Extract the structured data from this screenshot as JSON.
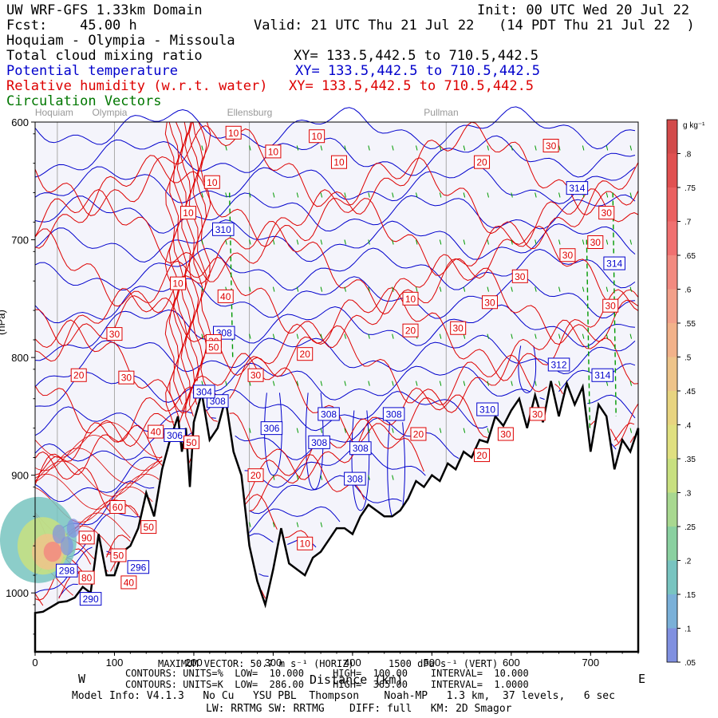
{
  "header": {
    "line1_left": "UW WRF-GFS 1.33km Domain",
    "line1_right": "Init: 00 UTC Wed 20 Jul 22",
    "line2_left": "Fcst:    45.00 h",
    "line2_right": "Valid: 21 UTC Thu 21 Jul 22   (14 PDT Thu 21 Jul 22  )",
    "route": "Hoquiam - Olympia - Missoula",
    "field1": "Total cloud mixing ratio",
    "field1_xy": "XY= 133.5,442.5 to 710.5,442.5",
    "field2": "Potential temperature",
    "field2_xy": "XY= 133.5,442.5 to 710.5,442.5",
    "field3": "Relative humidity (w.r.t. water)",
    "field3_xy": "XY= 133.5,442.5 to 710.5,442.5",
    "field4": "Circulation Vectors"
  },
  "colors": {
    "rh": "#dd0000",
    "theta": "#0000cc",
    "vectors": "#009900",
    "terrain": "#000000",
    "background": "#f4f4fb"
  },
  "chart_data": {
    "type": "contour-cross-section",
    "xlabel": "Distance (km)",
    "ylabel": "Pressure (hPa)",
    "xlim": [
      0,
      760
    ],
    "ylim": [
      1050,
      600
    ],
    "x_ticks": [
      0,
      100,
      200,
      300,
      400,
      500,
      600,
      700
    ],
    "y_ticks": [
      600,
      700,
      800,
      900,
      1000
    ],
    "y_tick_labels": [
      "600",
      "700",
      "800",
      "900",
      "1000"
    ],
    "y_axis_visible_label": "(hPa)",
    "direction_left": "W",
    "direction_right": "E",
    "locations": [
      {
        "name": "Hoquiam",
        "x": 28
      },
      {
        "name": "Olympia",
        "x": 100
      },
      {
        "name": "Ellensburg",
        "x": 270
      },
      {
        "name": "Pullman",
        "x": 518
      }
    ],
    "terrain_surface_hPa": [
      [
        0,
        1017
      ],
      [
        10,
        1016
      ],
      [
        20,
        1012
      ],
      [
        30,
        1008
      ],
      [
        40,
        1007
      ],
      [
        50,
        1004
      ],
      [
        60,
        995
      ],
      [
        70,
        1000
      ],
      [
        80,
        950
      ],
      [
        90,
        985
      ],
      [
        100,
        985
      ],
      [
        110,
        965
      ],
      [
        120,
        960
      ],
      [
        130,
        945
      ],
      [
        140,
        915
      ],
      [
        150,
        935
      ],
      [
        160,
        895
      ],
      [
        170,
        870
      ],
      [
        180,
        850
      ],
      [
        185,
        880
      ],
      [
        190,
        860
      ],
      [
        195,
        910
      ],
      [
        200,
        855
      ],
      [
        210,
        830
      ],
      [
        220,
        870
      ],
      [
        230,
        860
      ],
      [
        240,
        835
      ],
      [
        250,
        880
      ],
      [
        260,
        900
      ],
      [
        270,
        960
      ],
      [
        280,
        990
      ],
      [
        290,
        1010
      ],
      [
        300,
        980
      ],
      [
        310,
        945
      ],
      [
        320,
        975
      ],
      [
        330,
        980
      ],
      [
        340,
        985
      ],
      [
        350,
        970
      ],
      [
        360,
        965
      ],
      [
        370,
        955
      ],
      [
        380,
        945
      ],
      [
        390,
        945
      ],
      [
        400,
        950
      ],
      [
        410,
        935
      ],
      [
        420,
        925
      ],
      [
        430,
        930
      ],
      [
        440,
        935
      ],
      [
        450,
        935
      ],
      [
        460,
        930
      ],
      [
        470,
        920
      ],
      [
        480,
        905
      ],
      [
        490,
        910
      ],
      [
        500,
        900
      ],
      [
        510,
        905
      ],
      [
        520,
        890
      ],
      [
        530,
        895
      ],
      [
        540,
        880
      ],
      [
        550,
        885
      ],
      [
        560,
        870
      ],
      [
        570,
        872
      ],
      [
        580,
        850
      ],
      [
        590,
        858
      ],
      [
        600,
        845
      ],
      [
        610,
        835
      ],
      [
        620,
        860
      ],
      [
        630,
        832
      ],
      [
        640,
        855
      ],
      [
        650,
        820
      ],
      [
        660,
        850
      ],
      [
        670,
        822
      ],
      [
        680,
        840
      ],
      [
        690,
        825
      ],
      [
        700,
        880
      ],
      [
        710,
        840
      ],
      [
        720,
        850
      ],
      [
        730,
        895
      ],
      [
        740,
        870
      ],
      [
        750,
        880
      ],
      [
        760,
        860
      ]
    ],
    "rh_contour_labels": [
      {
        "text": "10",
        "x": 250,
        "p": 609
      },
      {
        "text": "10",
        "x": 300,
        "p": 625
      },
      {
        "text": "10",
        "x": 355,
        "p": 612
      },
      {
        "text": "10",
        "x": 383,
        "p": 634
      },
      {
        "text": "10",
        "x": 223,
        "p": 651
      },
      {
        "text": "10",
        "x": 193,
        "p": 677
      },
      {
        "text": "10",
        "x": 180,
        "p": 737
      },
      {
        "text": "10",
        "x": 473,
        "p": 750
      },
      {
        "text": "10",
        "x": 340,
        "p": 958
      },
      {
        "text": "20",
        "x": 563,
        "p": 634
      },
      {
        "text": "20",
        "x": 473,
        "p": 777
      },
      {
        "text": "20",
        "x": 340,
        "p": 797
      },
      {
        "text": "20",
        "x": 55,
        "p": 815
      },
      {
        "text": "20",
        "x": 278,
        "p": 900
      },
      {
        "text": "20",
        "x": 483,
        "p": 865
      },
      {
        "text": "20",
        "x": 563,
        "p": 883
      },
      {
        "text": "30",
        "x": 650,
        "p": 620
      },
      {
        "text": "30",
        "x": 720,
        "p": 677
      },
      {
        "text": "30",
        "x": 706,
        "p": 702
      },
      {
        "text": "30",
        "x": 671,
        "p": 713
      },
      {
        "text": "30",
        "x": 611,
        "p": 731
      },
      {
        "text": "30",
        "x": 573,
        "p": 753
      },
      {
        "text": "30",
        "x": 533,
        "p": 775
      },
      {
        "text": "30",
        "x": 100,
        "p": 780
      },
      {
        "text": "30",
        "x": 115,
        "p": 817
      },
      {
        "text": "30",
        "x": 278,
        "p": 815
      },
      {
        "text": "30",
        "x": 593,
        "p": 865
      },
      {
        "text": "30",
        "x": 633,
        "p": 848
      },
      {
        "text": "30",
        "x": 725,
        "p": 756
      },
      {
        "text": "30",
        "x": 225,
        "p": 786
      },
      {
        "text": "40",
        "x": 240,
        "p": 748
      },
      {
        "text": "40",
        "x": 152,
        "p": 863
      },
      {
        "text": "40",
        "x": 118,
        "p": 991
      },
      {
        "text": "50",
        "x": 225,
        "p": 791
      },
      {
        "text": "50",
        "x": 197,
        "p": 872
      },
      {
        "text": "50",
        "x": 143,
        "p": 944
      },
      {
        "text": "50",
        "x": 105,
        "p": 968
      },
      {
        "text": "60",
        "x": 104,
        "p": 927
      },
      {
        "text": "80",
        "x": 65,
        "p": 987
      },
      {
        "text": "90",
        "x": 65,
        "p": 953
      }
    ],
    "theta_contour_labels": [
      {
        "text": "310",
        "x": 237,
        "p": 691
      },
      {
        "text": "308",
        "x": 238,
        "p": 779
      },
      {
        "text": "308",
        "x": 230,
        "p": 837
      },
      {
        "text": "304",
        "x": 213,
        "p": 829
      },
      {
        "text": "306",
        "x": 176,
        "p": 866
      },
      {
        "text": "306",
        "x": 298,
        "p": 860
      },
      {
        "text": "308",
        "x": 370,
        "p": 848
      },
      {
        "text": "308",
        "x": 358,
        "p": 872
      },
      {
        "text": "308",
        "x": 410,
        "p": 877
      },
      {
        "text": "308",
        "x": 452,
        "p": 848
      },
      {
        "text": "308",
        "x": 403,
        "p": 903
      },
      {
        "text": "310",
        "x": 570,
        "p": 844
      },
      {
        "text": "312",
        "x": 660,
        "p": 806
      },
      {
        "text": "314",
        "x": 683,
        "p": 656
      },
      {
        "text": "314",
        "x": 730,
        "p": 720
      },
      {
        "text": "314",
        "x": 715,
        "p": 815
      },
      {
        "text": "296",
        "x": 130,
        "p": 978
      },
      {
        "text": "298",
        "x": 40,
        "p": 981
      },
      {
        "text": "290",
        "x": 70,
        "p": 1005
      }
    ],
    "cloud_colorbar": {
      "units": "g kg⁻¹",
      "ticks": [
        ".8",
        ".75",
        ".7",
        ".65",
        ".6",
        ".55",
        ".5",
        ".45",
        ".4",
        ".35",
        ".3",
        ".25",
        ".2",
        ".15",
        ".1",
        ".05"
      ],
      "colors": [
        "#d24a4a",
        "#e05050",
        "#ea6060",
        "#f07070",
        "#f28a80",
        "#f3a08a",
        "#f2b28a",
        "#eec48a",
        "#e8d480",
        "#e0e080",
        "#c8e080",
        "#a8d890",
        "#8ad0a0",
        "#78c4c0",
        "#7ab0d8",
        "#8090e0"
      ]
    }
  },
  "footer": {
    "max_vector": "MAXIMUM VECTOR: 50.7 m s⁻¹ (HORIZ)      1500 dPa s⁻¹ (VERT)",
    "contours_rh": "CONTOURS: UNITS=%  LOW=  10.000     HIGH=  100.00    INTERVAL=  10.000",
    "contours_theta": "CONTOURS: UNITS=K  LOW=  286.00     HIGH=  365.00    INTERVAL=  1.0000",
    "model_info": "Model Info: V4.1.3   No Cu   YSU PBL  Thompson    Noah-MP   1.3 km,  37 levels,   6 sec",
    "physics": "LW: RRTMG SW: RRTMG    DIFF: full   KM: 2D Smagor"
  }
}
